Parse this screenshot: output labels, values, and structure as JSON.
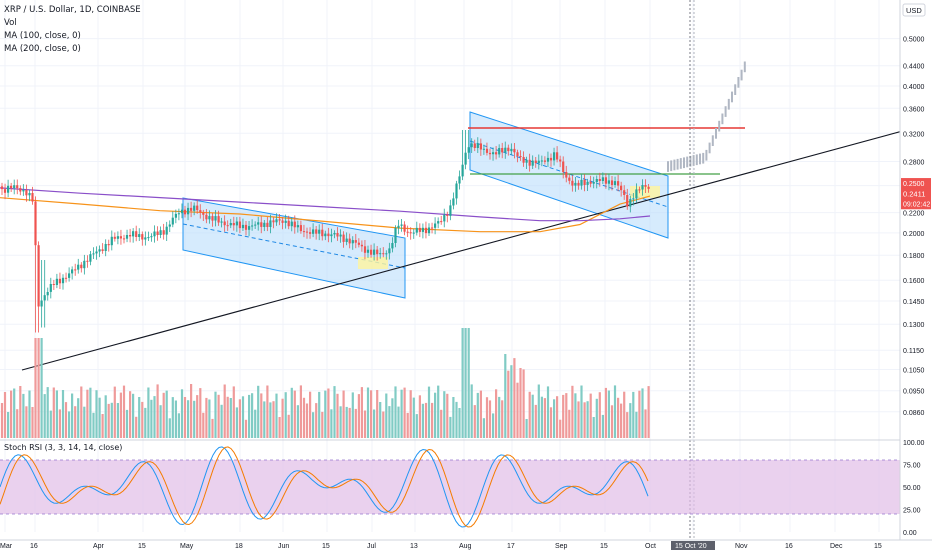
{
  "legend": {
    "symbol": "XRP / U.S. Dollar, 1D, COINBASE",
    "vol": "Vol",
    "ma100": "MA (100, close, 0)",
    "ma200": "MA (200, close, 0)"
  },
  "currency": "USD",
  "stoch_title": "Stoch RSI (3, 3, 14, 14, close)",
  "price_labels": {
    "last": "0.2411",
    "countdown": "09:02:42",
    "partial": "0.2500"
  },
  "crosshair_date": "15 Oct '20",
  "colors": {
    "up": "#26a69a",
    "down": "#ef5350",
    "ma100": "#f7931a",
    "ma200": "#8a4fc9",
    "channel_fill": "#bbdefb",
    "channel_stroke": "#2196f3",
    "stoch_band": "#e1bee7"
  },
  "chart_data": [
    {
      "type": "candlestick",
      "title": "XRP / U.S. Dollar, 1D, COINBASE",
      "y_scale": "log",
      "ylim": [
        0.076,
        0.6
      ],
      "y_ticks": [
        "0.5000",
        "0.4400",
        "0.4000",
        "0.3600",
        "0.3200",
        "0.2800",
        "0.2500",
        "0.2200",
        "0.2000",
        "0.1800",
        "0.1600",
        "0.1450",
        "0.1300",
        "0.1150",
        "0.1050",
        "0.0950",
        "0.0860"
      ],
      "x_ticks": [
        "Mar",
        "16",
        "Apr",
        "15",
        "May",
        "18",
        "Jun",
        "15",
        "Jul",
        "13",
        "Aug",
        "17",
        "Sep",
        "15",
        "Oct",
        "15 Oct '20",
        "Nov",
        "16",
        "Dec",
        "15"
      ],
      "series": [
        {
          "name": "MA (100, close, 0)",
          "values": [
            0.2361,
            0.2292,
            0.2221,
            0.2186,
            0.2115,
            0.2046,
            0.2011,
            0.2011,
            0.2081,
            0.2291,
            0.2379
          ]
        },
        {
          "name": "MA (200, close, 0)",
          "values": [
            0.2473,
            0.2412,
            0.2362,
            0.2313,
            0.2264,
            0.2215,
            0.2157,
            0.2118,
            0.2118,
            0.2137,
            0.2166
          ]
        }
      ],
      "last_price": 0.2411
    },
    {
      "type": "bar",
      "title": "Vol",
      "note": "volume histogram under price pane"
    },
    {
      "type": "line",
      "title": "Stoch RSI (3, 3, 14, 14, close)",
      "ylim": [
        0,
        100
      ],
      "y_ticks": [
        "100.00",
        "75.00",
        "50.00",
        "25.00",
        "0.00"
      ],
      "bands": [
        20,
        80
      ]
    }
  ]
}
